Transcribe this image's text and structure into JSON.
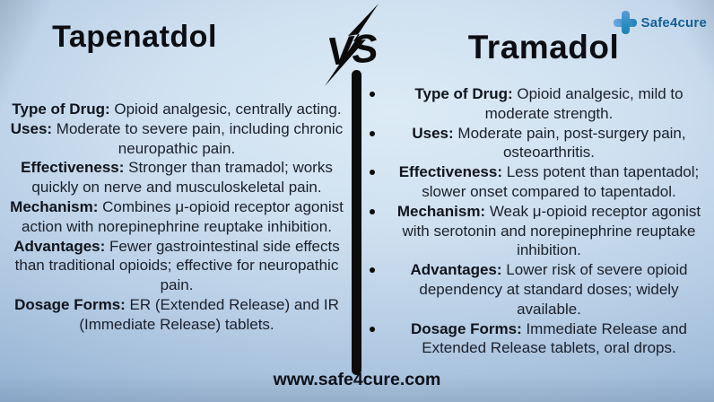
{
  "header": {
    "left_title": "Tapenatdol",
    "right_title": "Tramadol",
    "vs_label": "VS"
  },
  "logo": {
    "brand": "Safe4cure",
    "cross_light_blue": "#5d9dd8",
    "cross_teal": "#1f83b6",
    "text_color": "#135f98"
  },
  "left_column": {
    "items": [
      {
        "label": "Type of Drug:",
        "text": "Opioid analgesic, centrally acting."
      },
      {
        "label": "Uses:",
        "text": "Moderate to severe pain, including chronic neuropathic pain."
      },
      {
        "label": "Effectiveness:",
        "text": "Stronger than tramadol; works quickly on nerve and musculoskeletal pain."
      },
      {
        "label": "Mechanism:",
        "text": "Combines μ-opioid receptor agonist action with norepinephrine reuptake inhibition."
      },
      {
        "label": "Advantages:",
        "text": "Fewer gastrointestinal side effects than traditional opioids; effective for neuropathic pain."
      },
      {
        "label": "Dosage Forms:",
        "text": "ER (Extended Release) and IR (Immediate Release) tablets."
      }
    ]
  },
  "right_column": {
    "items": [
      {
        "label": "Type of Drug:",
        "text": "Opioid analgesic, mild to moderate strength."
      },
      {
        "label": "Uses:",
        "text": "Moderate pain, post-surgery pain, osteoarthritis."
      },
      {
        "label": "Effectiveness:",
        "text": "Less potent than tapentadol; slower onset compared to tapentadol."
      },
      {
        "label": "Mechanism:",
        "text": "Weak μ-opioid receptor agonist with serotonin and norepinephrine reuptake inhibition."
      },
      {
        "label": "Advantages:",
        "text": "Lower risk of severe opioid dependency at standard doses; widely available."
      },
      {
        "label": "Dosage Forms:",
        "text": "Immediate Release and Extended Release tablets, oral drops."
      }
    ]
  },
  "footer": {
    "website": "www.safe4cure.com"
  },
  "colors": {
    "background_center": "#dcebf5",
    "background_edge": "#87a4c8",
    "divider": "#0b0b0b",
    "text": "#1b202a"
  }
}
